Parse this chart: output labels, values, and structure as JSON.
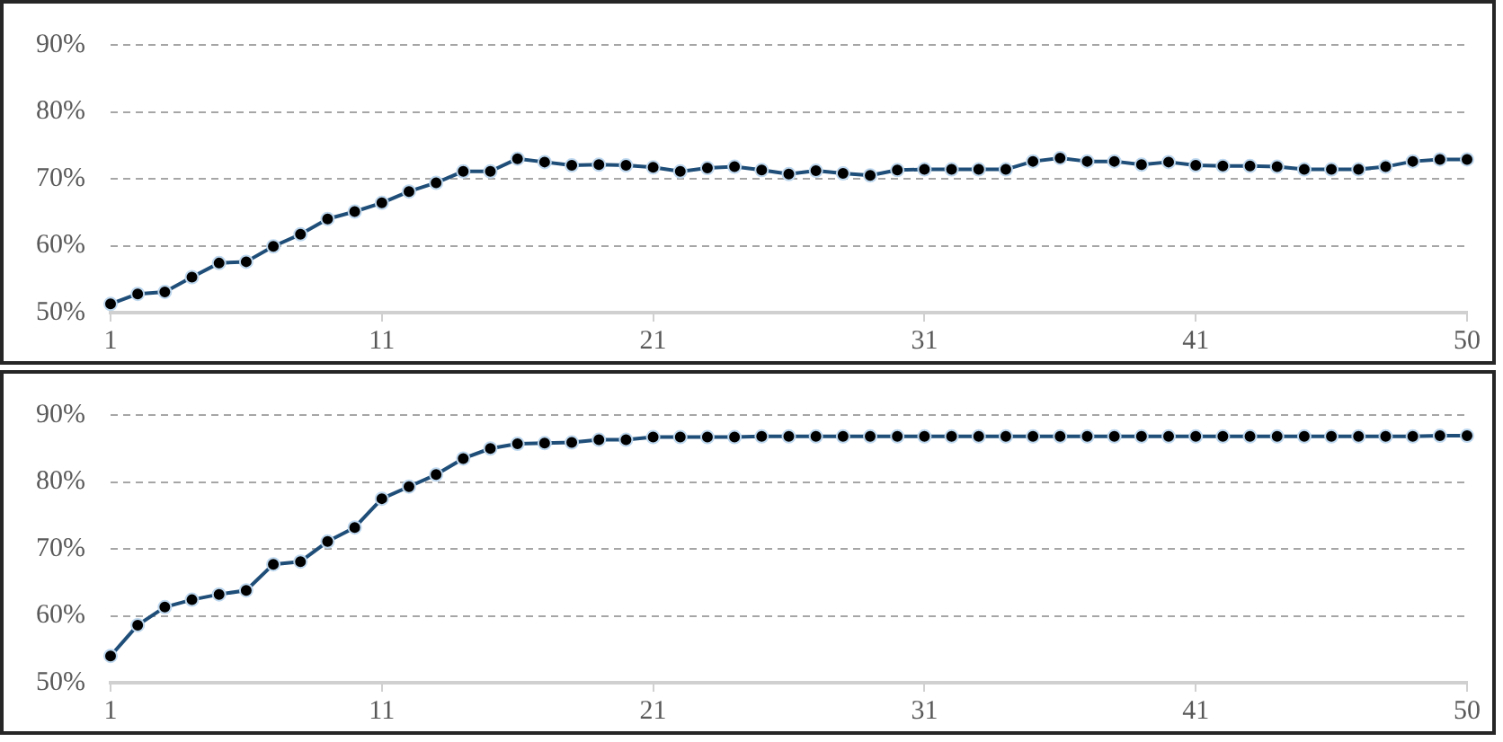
{
  "chart_data": [
    {
      "type": "line",
      "categories": [
        "1",
        null,
        null,
        null,
        null,
        null,
        null,
        null,
        null,
        null,
        "11",
        null,
        null,
        null,
        null,
        null,
        null,
        null,
        null,
        null,
        "21",
        null,
        null,
        null,
        null,
        null,
        null,
        null,
        null,
        null,
        "31",
        null,
        null,
        null,
        null,
        null,
        null,
        null,
        null,
        null,
        "41",
        null,
        null,
        null,
        null,
        null,
        null,
        null,
        null,
        null,
        "50"
      ],
      "series": [
        {
          "color": "#1f4e79",
          "values": [
            51.3,
            52.8,
            53.1,
            55.3,
            57.4,
            57.6,
            59.9,
            61.7,
            64.0,
            65.1,
            66.4,
            68.1,
            69.4,
            71.1,
            71.1,
            73.0,
            72.5,
            72.0,
            72.1,
            72.0,
            71.7,
            71.1,
            71.6,
            71.8,
            71.3,
            70.7,
            71.2,
            70.8,
            70.5,
            71.3,
            71.4,
            71.4,
            71.4,
            71.4,
            72.6,
            73.1,
            72.6,
            72.6,
            72.1,
            72.5,
            72.0,
            71.9,
            71.9,
            71.8,
            71.4,
            71.4,
            71.4,
            71.8,
            72.6,
            72.9,
            72.9
          ]
        }
      ],
      "ylim": [
        50,
        90
      ],
      "yticks": [
        {
          "value": 50,
          "label": "50%"
        },
        {
          "value": 60,
          "label": "60%"
        },
        {
          "value": 70,
          "label": "70%"
        },
        {
          "value": 80,
          "label": "80%"
        },
        {
          "value": 90,
          "label": "90%"
        }
      ],
      "grid": "y",
      "marker": "circle",
      "line_style": "solid"
    },
    {
      "type": "line",
      "categories": [
        "1",
        null,
        null,
        null,
        null,
        null,
        null,
        null,
        null,
        null,
        "11",
        null,
        null,
        null,
        null,
        null,
        null,
        null,
        null,
        null,
        "21",
        null,
        null,
        null,
        null,
        null,
        null,
        null,
        null,
        null,
        "31",
        null,
        null,
        null,
        null,
        null,
        null,
        null,
        null,
        null,
        "41",
        null,
        null,
        null,
        null,
        null,
        null,
        null,
        null,
        null,
        "50"
      ],
      "series": [
        {
          "color": "#1f4e79",
          "values": [
            54.0,
            58.6,
            61.3,
            62.4,
            63.2,
            63.8,
            67.7,
            68.1,
            71.1,
            73.2,
            77.5,
            79.3,
            81.1,
            83.5,
            85.0,
            85.7,
            85.8,
            85.9,
            86.3,
            86.3,
            86.7,
            86.7,
            86.7,
            86.7,
            86.8,
            86.8,
            86.8,
            86.8,
            86.8,
            86.8,
            86.8,
            86.8,
            86.8,
            86.8,
            86.8,
            86.8,
            86.8,
            86.8,
            86.8,
            86.8,
            86.8,
            86.8,
            86.8,
            86.8,
            86.8,
            86.8,
            86.8,
            86.8,
            86.8,
            86.9,
            86.9
          ]
        }
      ],
      "ylim": [
        50,
        90
      ],
      "yticks": [
        {
          "value": 50,
          "label": "50%"
        },
        {
          "value": 60,
          "label": "60%"
        },
        {
          "value": 70,
          "label": "70%"
        },
        {
          "value": 80,
          "label": "80%"
        },
        {
          "value": 90,
          "label": "90%"
        }
      ],
      "grid": "y",
      "marker": "circle",
      "line_style": "solid"
    }
  ]
}
